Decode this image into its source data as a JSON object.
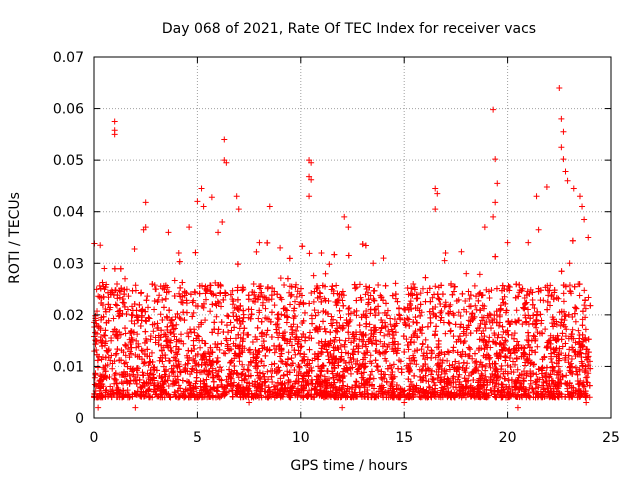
{
  "chart_data": {
    "type": "scatter",
    "title": "Day 068 of 2021, Rate Of TEC Index for receiver vacs",
    "xlabel": "GPS time / hours",
    "ylabel": "ROTI / TECUs",
    "xlim": [
      0,
      25
    ],
    "ylim": [
      0,
      0.07
    ],
    "x_ticks": [
      0,
      5,
      10,
      15,
      20,
      25
    ],
    "x_tick_labels": [
      "0",
      "5",
      "10",
      "15",
      "20",
      "25"
    ],
    "y_ticks": [
      0,
      0.01,
      0.02,
      0.03,
      0.04,
      0.05,
      0.06,
      0.07
    ],
    "y_tick_labels": [
      "0",
      "0.01",
      "0.02",
      "0.03",
      "0.04",
      "0.05",
      "0.06",
      "0.07"
    ],
    "grid": true,
    "marker": "plus",
    "series": [
      {
        "name": "ROTI",
        "color": "#ff0000",
        "x": [
          1.0,
          1.0,
          1.0,
          2.5,
          2.5,
          2.4,
          3.6,
          4.6,
          5.0,
          5.2,
          5.3,
          5.7,
          6.3,
          6.3,
          6.4,
          6.2,
          6.9,
          7.0,
          8.5,
          10.4,
          10.5,
          10.4,
          10.5,
          10.4,
          12.1,
          12.3,
          16.5,
          16.6,
          16.5,
          18.9,
          19.3,
          19.4,
          19.5,
          19.4,
          19.3,
          20.0,
          21.4,
          21.5,
          21.9,
          22.5,
          22.6,
          22.7,
          22.6,
          22.7,
          22.8,
          22.9,
          23.2,
          23.5,
          23.6,
          23.7,
          23.9,
          0.3,
          0.5,
          1.5,
          3.0,
          4.1,
          6.0,
          8.0,
          9.0,
          11.0,
          13.5,
          14.0,
          17.0,
          18.0,
          21.0,
          23.0,
          0.2,
          2.0,
          7.5,
          12.0,
          15.0,
          20.5,
          23.8
        ],
        "y": [
          0.0575,
          0.0558,
          0.055,
          0.0418,
          0.037,
          0.0365,
          0.036,
          0.037,
          0.042,
          0.0445,
          0.041,
          0.0428,
          0.054,
          0.05,
          0.0495,
          0.038,
          0.043,
          0.0405,
          0.041,
          0.05,
          0.0495,
          0.0468,
          0.0462,
          0.043,
          0.039,
          0.037,
          0.0445,
          0.0435,
          0.0405,
          0.037,
          0.0598,
          0.0502,
          0.0455,
          0.0418,
          0.039,
          0.034,
          0.043,
          0.0365,
          0.0448,
          0.064,
          0.058,
          0.0555,
          0.0525,
          0.0502,
          0.0478,
          0.046,
          0.0445,
          0.043,
          0.041,
          0.0385,
          0.035,
          0.0335,
          0.029,
          0.027,
          0.025,
          0.032,
          0.036,
          0.034,
          0.033,
          0.032,
          0.03,
          0.031,
          0.032,
          0.028,
          0.034,
          0.03,
          0.002,
          0.002,
          0.003,
          0.002,
          0.003,
          0.002,
          0.003
        ]
      }
    ],
    "density_note": "dense band of points between about 0.004 and 0.025 across the full 0-24 h range"
  }
}
